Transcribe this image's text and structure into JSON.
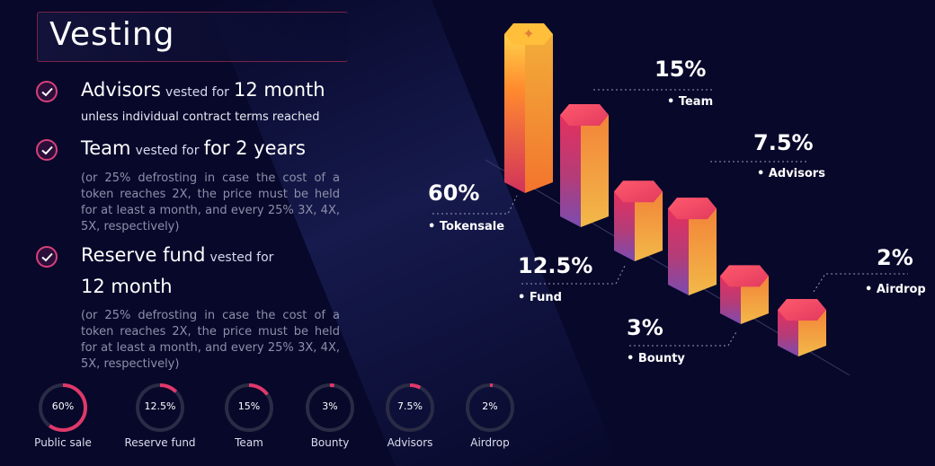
{
  "title": "Vesting",
  "items": [
    {
      "name": "Advisors",
      "vested": "vested for",
      "period": "12 month",
      "note": "unless individual contract terms reached"
    },
    {
      "name": "Team",
      "vested": "vested for",
      "period": "for 2 years",
      "note": "(or 25% defrosting in case the cost of a token reaches 2X, the price must be held for at least a month, and every 25% 3X, 4X, 5X, respectively)"
    },
    {
      "name": "Reserve fund",
      "vested": "vested for",
      "period": "12 month",
      "note": "(or 25% defrosting in case the cost of a token reaches 2X, the price must be held for at least a month, and every 25% 3X, 4X, 5X, respectively)"
    }
  ],
  "colors": {
    "accent": "#e0386a",
    "ring": "#2a2b45",
    "orange": "#ffb03a",
    "magenta": "#d62a5c"
  },
  "chart_data": {
    "type": "bar",
    "style": "3d-hexagonal-columns",
    "categories": [
      "Tokensale",
      "Fund",
      "Team",
      "Bounty",
      "Advisors",
      "Airdrop"
    ],
    "values": [
      60,
      12.5,
      15,
      3,
      7.5,
      2
    ],
    "value_labels": [
      "60%",
      "12.5%",
      "15%",
      "3%",
      "7.5%",
      "2%"
    ],
    "legend_prefix": "•",
    "donuts": [
      {
        "label": "Public sale",
        "value": 60,
        "text": "60%"
      },
      {
        "label": "Reserve fund",
        "value": 12.5,
        "text": "12.5%"
      },
      {
        "label": "Team",
        "value": 15,
        "text": "15%"
      },
      {
        "label": "Bounty",
        "value": 3,
        "text": "3%"
      },
      {
        "label": "Advisors",
        "value": 7.5,
        "text": "7.5%"
      },
      {
        "label": "Airdrop",
        "value": 2,
        "text": "2%"
      }
    ]
  }
}
